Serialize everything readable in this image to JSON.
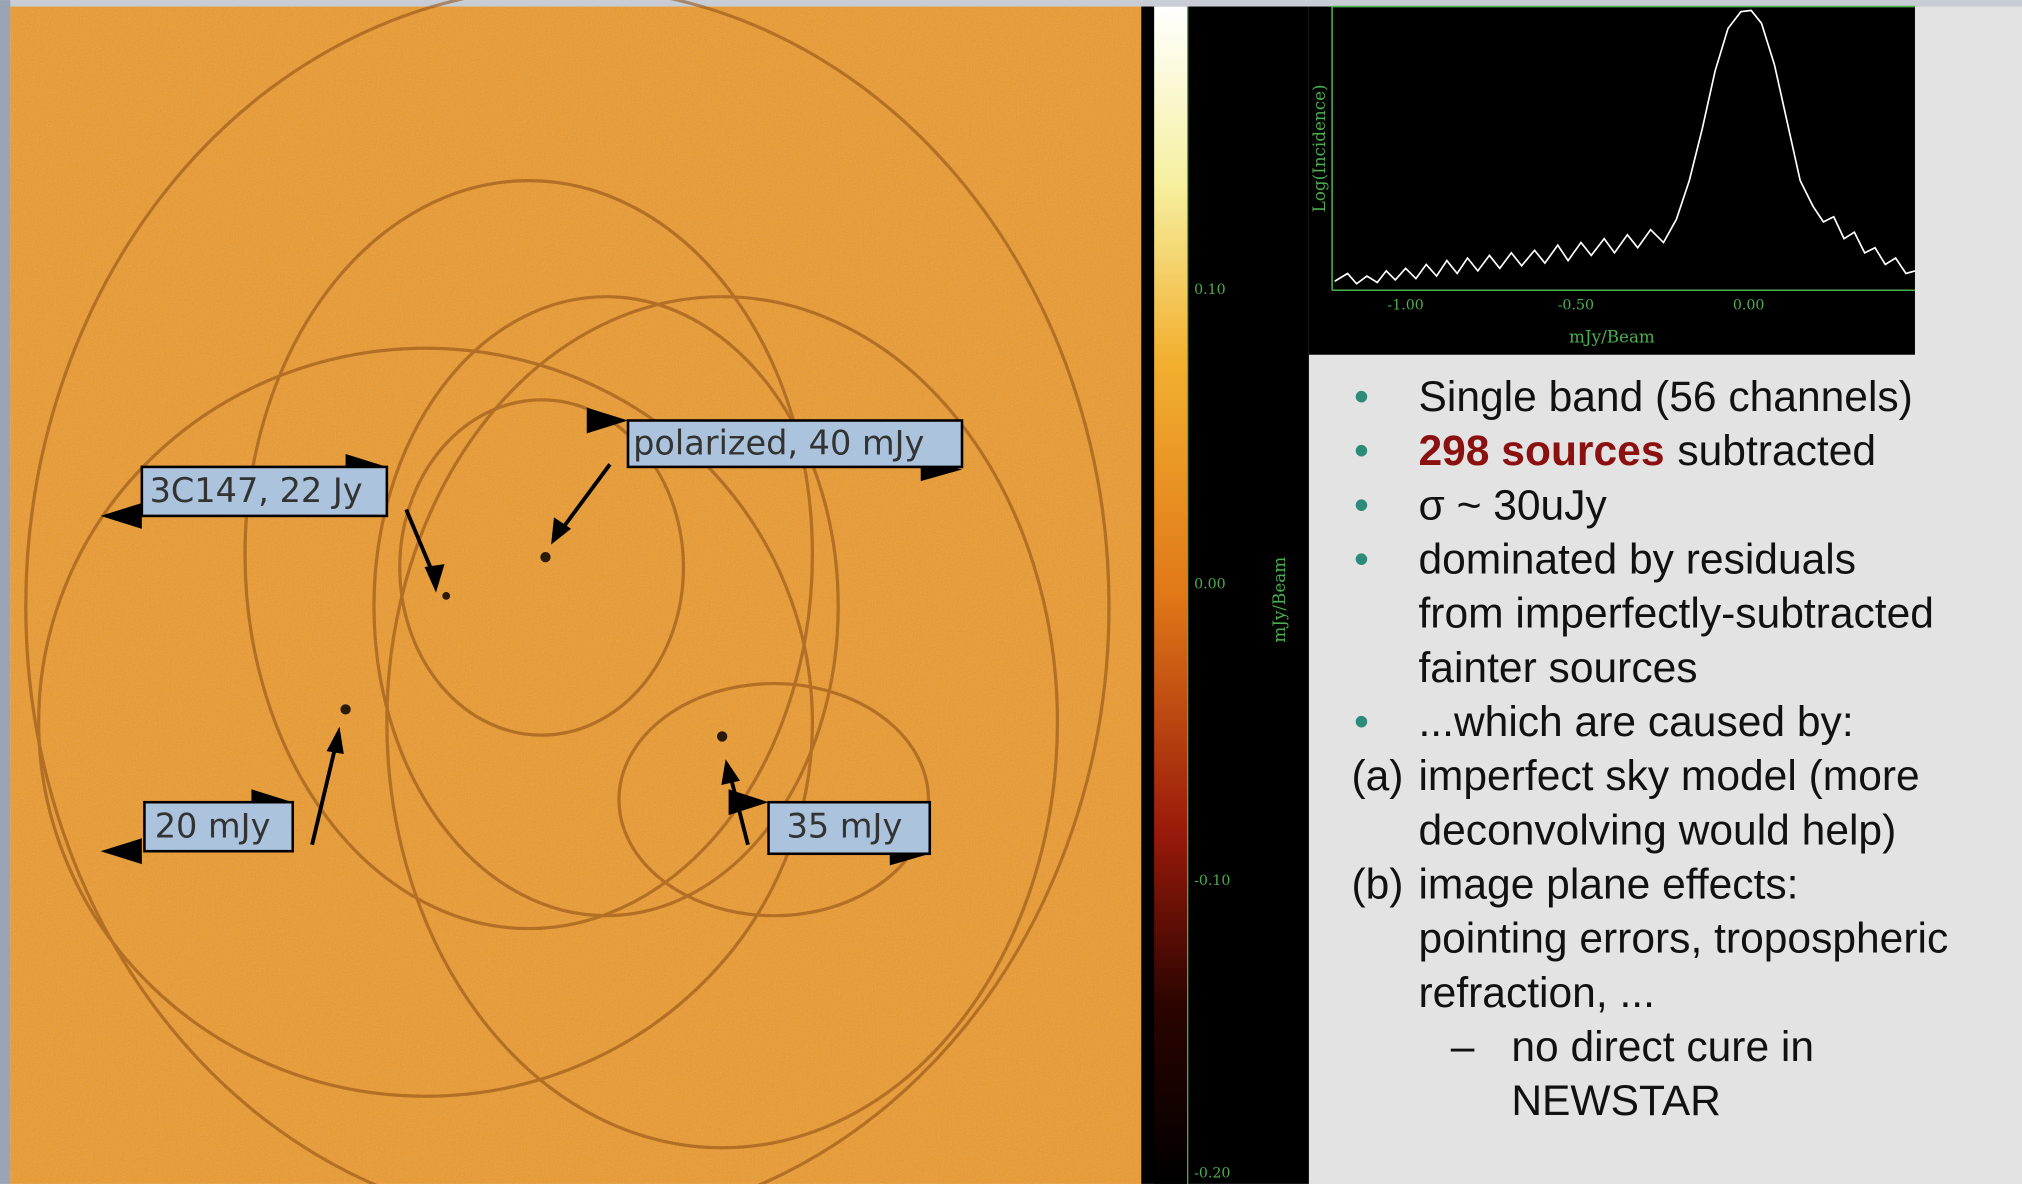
{
  "annotations": [
    "3C147, 22 Jy",
    "polarized, 40 mJy",
    "20 mJy",
    "35 mJy"
  ],
  "colorbar": {
    "label": "mJy/Beam",
    "ticks": [
      "0.10",
      "0.00",
      "-0.10",
      "-0.20"
    ]
  },
  "histogram": {
    "y_label": "Log(Incidence)",
    "x_label": "mJy/Beam",
    "x_ticks": [
      "-1.00",
      "-0.50",
      "0.00"
    ]
  },
  "items": [
    {
      "marker": "•",
      "lines": [
        "Single band (56 channels)"
      ]
    },
    {
      "marker": "•",
      "bold": "298 sources",
      "lines": [
        "subtracted"
      ]
    },
    {
      "marker": "•",
      "lines": [
        "σ ~ 30uJy"
      ]
    },
    {
      "marker": "•",
      "lines": [
        "dominated by residuals",
        "from imperfectly-subtracted",
        "fainter sources"
      ]
    },
    {
      "marker": "•",
      "lines": [
        "...which are caused by:"
      ]
    },
    {
      "marker": "(a)",
      "lines": [
        "imperfect sky model (more",
        "deconvolving would help)"
      ]
    },
    {
      "marker": "(b)",
      "lines": [
        "image plane effects:",
        "pointing errors, tropospheric",
        "refraction, ..."
      ]
    },
    {
      "marker": "–",
      "sub": true,
      "lines": [
        "no direct cure in",
        "NEWSTAR"
      ]
    }
  ]
}
